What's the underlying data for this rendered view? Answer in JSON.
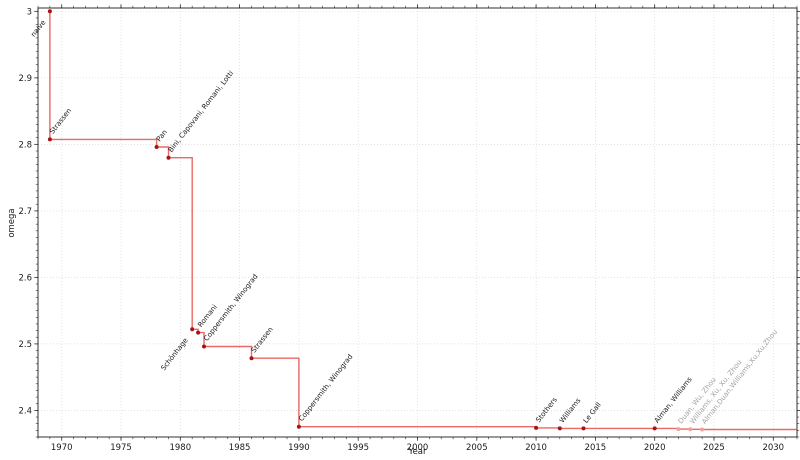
{
  "chart_data": {
    "type": "line",
    "title": "",
    "xlabel": "Year",
    "ylabel": "omega",
    "xlim": [
      1968,
      2032
    ],
    "ylim": [
      2.36,
      3.005
    ],
    "x_ticks": [
      1970,
      1975,
      1980,
      1985,
      1990,
      1995,
      2000,
      2005,
      2010,
      2015,
      2020,
      2025,
      2030
    ],
    "y_ticks": [
      2.4,
      2.5,
      2.6,
      2.7,
      2.8,
      2.9,
      3
    ],
    "x_minor_step": 1,
    "y_minor_step": 0.01,
    "grid": true,
    "step_mode": "post",
    "legend": "none",
    "colors": {
      "line": "#e2433e",
      "marker": "#a81414",
      "faded_marker": "#f2a09b",
      "label": "#1a1a1a",
      "faded_label": "#a3a3a3",
      "grid": "#d9d9d9",
      "spine": "#1a1a1a",
      "tick": "#333333"
    },
    "annotation_angle_deg": -52,
    "points": [
      {
        "year": 1969,
        "omega": 3.0,
        "label": "naive",
        "side": "below",
        "faded": false
      },
      {
        "year": 1969,
        "omega": 2.8074,
        "label": "Strassen",
        "side": "above",
        "faded": false
      },
      {
        "year": 1978,
        "omega": 2.796,
        "label": "Pan",
        "side": "above",
        "faded": false
      },
      {
        "year": 1979,
        "omega": 2.7799,
        "label": "Bini, Capovani, Romani, Lotti",
        "side": "above",
        "faded": false
      },
      {
        "year": 1981,
        "omega": 2.522,
        "label": "Schönhage",
        "side": "below",
        "faded": false
      },
      {
        "year": 1981.5,
        "omega": 2.517,
        "label": "Romani",
        "side": "above",
        "faded": false
      },
      {
        "year": 1982,
        "omega": 2.496,
        "label": "Coppersmith, Winograd",
        "side": "above",
        "faded": false
      },
      {
        "year": 1986,
        "omega": 2.4785,
        "label": "Strassen",
        "side": "above",
        "faded": false
      },
      {
        "year": 1990,
        "omega": 2.3755,
        "label": "Coppersmith, Winograd",
        "side": "above",
        "faded": false
      },
      {
        "year": 2010,
        "omega": 2.3737,
        "label": "Stothers",
        "side": "above",
        "faded": false
      },
      {
        "year": 2012,
        "omega": 2.3729,
        "label": "Williams",
        "side": "above",
        "faded": false
      },
      {
        "year": 2014,
        "omega": 2.3728639,
        "label": "Le Gall",
        "side": "above",
        "faded": false
      },
      {
        "year": 2020,
        "omega": 2.3728596,
        "label": "Alman, Williams",
        "side": "above",
        "faded": false
      },
      {
        "year": 2022,
        "omega": 2.371866,
        "label": "Duan, Wu, Zhou",
        "side": "above",
        "faded": true
      },
      {
        "year": 2023,
        "omega": 2.371552,
        "label": "Williams, Xu, Xu, Zhou",
        "side": "above",
        "faded": true
      },
      {
        "year": 2024,
        "omega": 2.371339,
        "label": "Alman,Duan,Williams,Xu,Xu,Zhou",
        "side": "above",
        "faded": true
      }
    ]
  }
}
